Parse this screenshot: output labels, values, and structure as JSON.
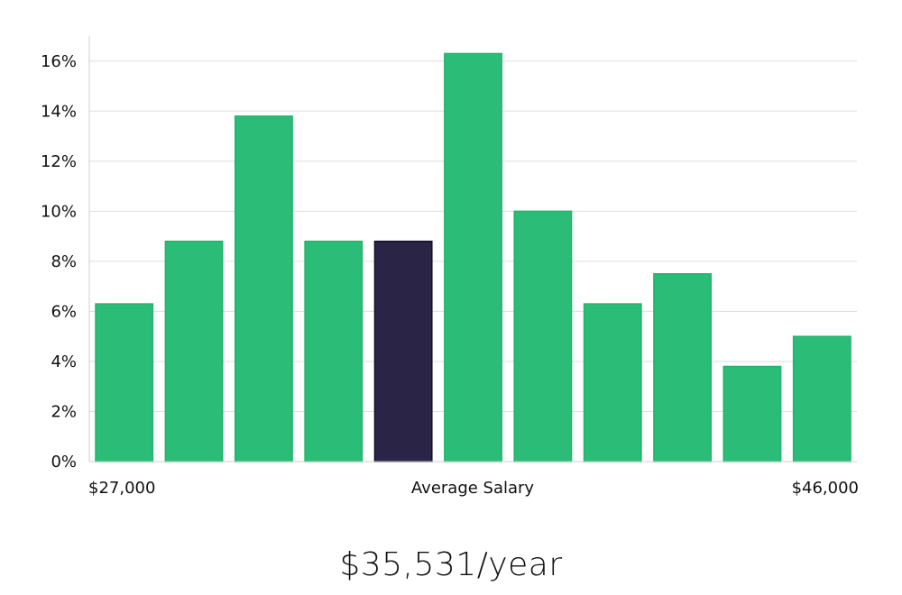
{
  "chart_data": {
    "type": "bar",
    "values": [
      6.3,
      8.8,
      13.8,
      8.8,
      8.8,
      16.3,
      10.0,
      6.3,
      7.5,
      3.8,
      5.0
    ],
    "highlight_index": 4,
    "ylim": [
      0,
      17
    ],
    "yticks": [
      0,
      2,
      4,
      6,
      8,
      10,
      12,
      14,
      16
    ],
    "ytick_suffix": "%",
    "grid": true,
    "x_labels": {
      "left": "$27,000",
      "center": "Average Salary",
      "right": "$46,000"
    },
    "colors": {
      "bar": "#2bbd77",
      "bar_edge": "#22b36c",
      "highlight": "#2a2546",
      "highlight_edge": "#14102e",
      "grid": "#dddddd",
      "axis": "#cfcfcf"
    }
  },
  "summary": {
    "salary_text": "$35,531/year"
  }
}
